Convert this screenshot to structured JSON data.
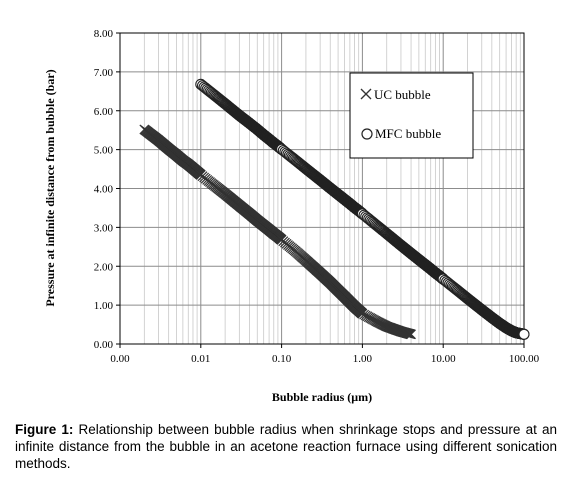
{
  "chart_data": {
    "type": "scatter",
    "xlabel": "Bubble radius (μm)",
    "ylabel": "Pressure at infinite distance from bubble (bar)",
    "x_scale": "log",
    "xlim": [
      0.001,
      100
    ],
    "ylim": [
      0,
      8
    ],
    "x_tick_labels": [
      "0.00",
      "0.01",
      "0.10",
      "1.00",
      "10.00",
      "100.00"
    ],
    "x_tick_values": [
      0.001,
      0.01,
      0.1,
      1,
      10,
      100
    ],
    "y_tick_labels": [
      "0.00",
      "1.00",
      "2.00",
      "3.00",
      "4.00",
      "5.00",
      "6.00",
      "7.00",
      "8.00"
    ],
    "y_tick_values": [
      0,
      1,
      2,
      3,
      4,
      5,
      6,
      7,
      8
    ],
    "grid": true,
    "legend_position": "top-right",
    "series": [
      {
        "name": "UC bubble",
        "marker": "x",
        "points": [
          [
            0.002,
            5.52
          ],
          [
            0.003,
            5.24
          ],
          [
            0.004,
            5.02
          ],
          [
            0.005,
            4.86
          ],
          [
            0.006,
            4.72
          ],
          [
            0.007,
            4.62
          ],
          [
            0.008,
            4.52
          ],
          [
            0.009,
            4.43
          ],
          [
            0.01,
            4.35
          ],
          [
            0.02,
            3.86
          ],
          [
            0.03,
            3.56
          ],
          [
            0.04,
            3.35
          ],
          [
            0.05,
            3.18
          ],
          [
            0.06,
            3.05
          ],
          [
            0.07,
            2.94
          ],
          [
            0.08,
            2.84
          ],
          [
            0.09,
            2.76
          ],
          [
            0.1,
            2.68
          ],
          [
            0.15,
            2.38
          ],
          [
            0.2,
            2.15
          ],
          [
            0.3,
            1.82
          ],
          [
            0.4,
            1.58
          ],
          [
            0.5,
            1.38
          ],
          [
            0.6,
            1.22
          ],
          [
            0.7,
            1.08
          ],
          [
            0.8,
            0.96
          ],
          [
            1.0,
            0.78
          ],
          [
            1.5,
            0.58
          ],
          [
            2.0,
            0.45
          ],
          [
            3.0,
            0.32
          ],
          [
            4.0,
            0.25
          ]
        ]
      },
      {
        "name": "MFC bubble",
        "marker": "circle",
        "points": [
          [
            0.01,
            6.68
          ],
          [
            0.02,
            6.18
          ],
          [
            0.03,
            5.88
          ],
          [
            0.04,
            5.68
          ],
          [
            0.05,
            5.52
          ],
          [
            0.06,
            5.38
          ],
          [
            0.07,
            5.27
          ],
          [
            0.08,
            5.17
          ],
          [
            0.09,
            5.09
          ],
          [
            0.1,
            5.01
          ],
          [
            0.15,
            4.72
          ],
          [
            0.2,
            4.51
          ],
          [
            0.3,
            4.22
          ],
          [
            0.4,
            4.01
          ],
          [
            0.5,
            3.85
          ],
          [
            0.6,
            3.72
          ],
          [
            0.7,
            3.61
          ],
          [
            0.8,
            3.51
          ],
          [
            0.9,
            3.43
          ],
          [
            1.0,
            3.35
          ],
          [
            2.0,
            2.84
          ],
          [
            3.0,
            2.54
          ],
          [
            4.0,
            2.33
          ],
          [
            5.0,
            2.17
          ],
          [
            6.0,
            2.04
          ],
          [
            7.0,
            1.93
          ],
          [
            8.0,
            1.83
          ],
          [
            9.0,
            1.75
          ],
          [
            10.0,
            1.67
          ],
          [
            15.0,
            1.38
          ],
          [
            20.0,
            1.17
          ],
          [
            30.0,
            0.88
          ],
          [
            40.0,
            0.68
          ],
          [
            50.0,
            0.53
          ],
          [
            60.0,
            0.42
          ],
          [
            70.0,
            0.34
          ],
          [
            80.0,
            0.29
          ],
          [
            100.0,
            0.25
          ]
        ]
      }
    ]
  },
  "caption": {
    "label": "Figure 1:",
    "text": " Relationship between bubble radius when shrinkage stops and pressure at an infinite distance from the bubble in an acetone reaction furnace using different sonication methods."
  }
}
